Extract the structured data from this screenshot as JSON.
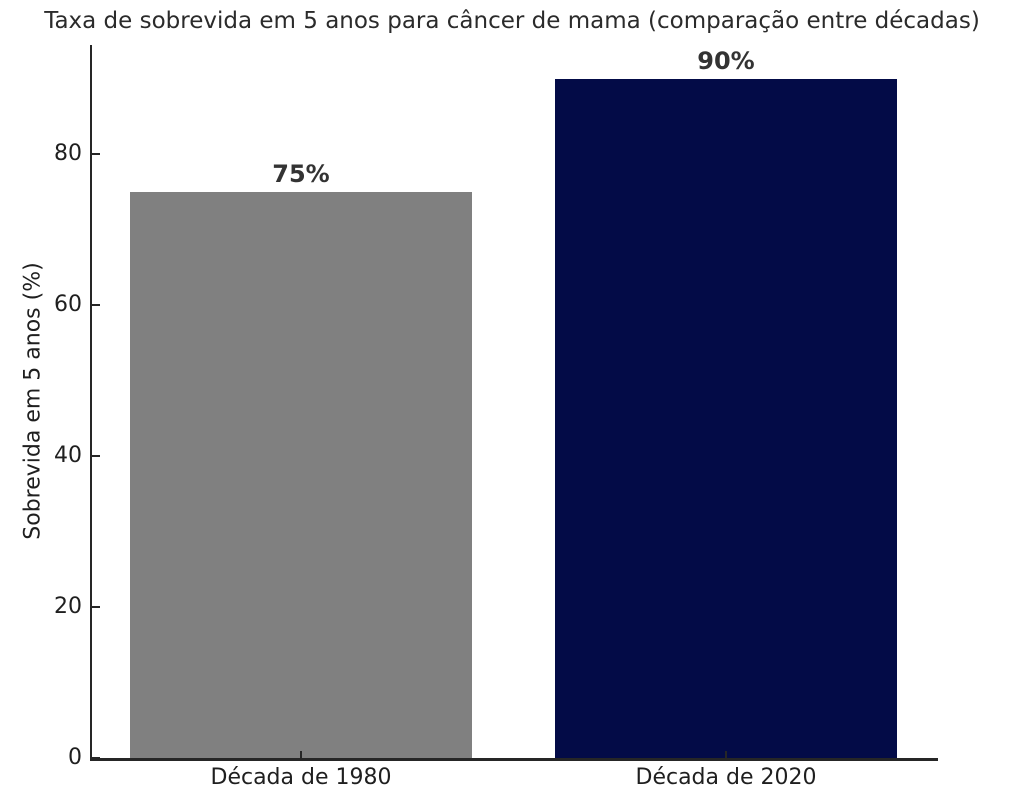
{
  "chart_data": {
    "type": "bar",
    "title": "Taxa de sobrevida em 5 anos para câncer de mama (comparação entre décadas)",
    "ylabel": "Sobrevida em 5 anos (%)",
    "xlabel": "",
    "categories": [
      "Década de 1980",
      "Década de 2020"
    ],
    "values": [
      75,
      90
    ],
    "value_labels": [
      "75%",
      "90%"
    ],
    "bar_colors": [
      "#808080",
      "#030b47"
    ],
    "yticks": [
      0,
      20,
      40,
      60,
      80
    ],
    "ylim": [
      0,
      94.5
    ],
    "grid": false,
    "legend": null,
    "spine_color": "#262626",
    "text_color": "#1f1f1f"
  }
}
